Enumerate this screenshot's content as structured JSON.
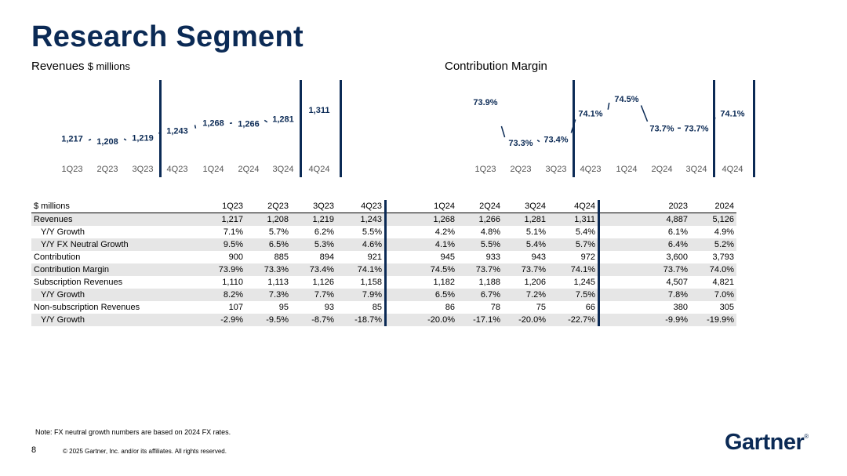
{
  "page": {
    "title": "Research Segment",
    "note": "Note: FX neutral growth numbers are based on 2024 FX rates.",
    "page_number": "8",
    "copyright": "© 2025 Gartner, Inc. and/or its affiliates. All rights reserved.",
    "logo": "Gartner",
    "logo_mark": "®"
  },
  "revenues_chart": {
    "label": "Revenues",
    "unit": "$ millions"
  },
  "margin_chart": {
    "label": "Contribution Margin"
  },
  "chart_data": [
    {
      "type": "line",
      "title": "Revenues",
      "ylabel": "$ millions",
      "categories": [
        "1Q23",
        "2Q23",
        "3Q23",
        "4Q23",
        "1Q24",
        "2Q24",
        "3Q24",
        "4Q24"
      ],
      "values": [
        1217,
        1208,
        1219,
        1243,
        1268,
        1266,
        1281,
        1311
      ],
      "data_labels": [
        "1,217",
        "1,208",
        "1,219",
        "1,243",
        "1,268",
        "1,266",
        "1,281",
        "1,311"
      ]
    },
    {
      "type": "line",
      "title": "Contribution Margin",
      "categories": [
        "1Q23",
        "2Q23",
        "3Q23",
        "4Q23",
        "1Q24",
        "2Q24",
        "3Q24",
        "4Q24"
      ],
      "values": [
        73.9,
        73.3,
        73.4,
        74.1,
        74.5,
        73.7,
        73.7,
        74.1
      ],
      "data_labels": [
        "73.9%",
        "73.3%",
        "73.4%",
        "74.1%",
        "74.5%",
        "73.7%",
        "73.7%",
        "74.1%"
      ]
    }
  ],
  "table": {
    "header": [
      "$ millions",
      "1Q23",
      "2Q23",
      "3Q23",
      "4Q23",
      "1Q24",
      "2Q24",
      "3Q24",
      "4Q24",
      "2023",
      "2024"
    ],
    "rows": [
      {
        "label": "Revenues",
        "indent": false,
        "shade": true,
        "values": [
          "1,217",
          "1,208",
          "1,219",
          "1,243",
          "1,268",
          "1,266",
          "1,281",
          "1,311",
          "4,887",
          "5,126"
        ]
      },
      {
        "label": "Y/Y Growth",
        "indent": true,
        "shade": false,
        "values": [
          "7.1%",
          "5.7%",
          "6.2%",
          "5.5%",
          "4.2%",
          "4.8%",
          "5.1%",
          "5.4%",
          "6.1%",
          "4.9%"
        ]
      },
      {
        "label": "Y/Y FX Neutral Growth",
        "indent": true,
        "shade": true,
        "values": [
          "9.5%",
          "6.5%",
          "5.3%",
          "4.6%",
          "4.1%",
          "5.5%",
          "5.4%",
          "5.7%",
          "6.4%",
          "5.2%"
        ]
      },
      {
        "label": "Contribution",
        "indent": false,
        "shade": false,
        "values": [
          "900",
          "885",
          "894",
          "921",
          "945",
          "933",
          "943",
          "972",
          "3,600",
          "3,793"
        ]
      },
      {
        "label": "Contribution Margin",
        "indent": false,
        "shade": true,
        "values": [
          "73.9%",
          "73.3%",
          "73.4%",
          "74.1%",
          "74.5%",
          "73.7%",
          "73.7%",
          "74.1%",
          "73.7%",
          "74.0%"
        ]
      },
      {
        "label": "Subscription Revenues",
        "indent": false,
        "shade": false,
        "values": [
          "1,110",
          "1,113",
          "1,126",
          "1,158",
          "1,182",
          "1,188",
          "1,206",
          "1,245",
          "4,507",
          "4,821"
        ]
      },
      {
        "label": "Y/Y Growth",
        "indent": true,
        "shade": true,
        "values": [
          "8.2%",
          "7.3%",
          "7.7%",
          "7.9%",
          "6.5%",
          "6.7%",
          "7.2%",
          "7.5%",
          "7.8%",
          "7.0%"
        ]
      },
      {
        "label": "Non-subscription Revenues",
        "indent": false,
        "shade": false,
        "values": [
          "107",
          "95",
          "93",
          "85",
          "86",
          "78",
          "75",
          "66",
          "380",
          "305"
        ]
      },
      {
        "label": "Y/Y Growth",
        "indent": true,
        "shade": true,
        "values": [
          "-2.9%",
          "-9.5%",
          "-8.7%",
          "-18.7%",
          "-20.0%",
          "-17.1%",
          "-20.0%",
          "-22.7%",
          "-9.9%",
          "-19.9%"
        ]
      }
    ]
  }
}
